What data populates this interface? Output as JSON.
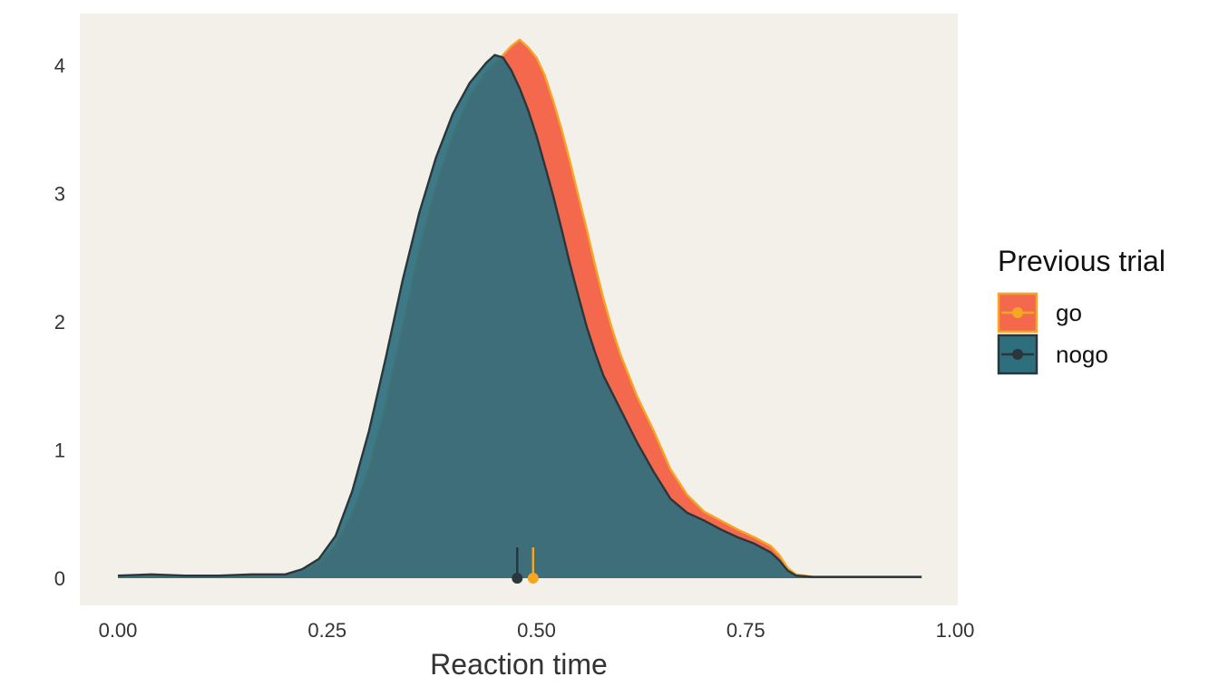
{
  "chart_data": {
    "type": "area",
    "title": "",
    "xlabel": "Reaction time",
    "ylabel": "",
    "xlim": [
      -0.05,
      1.0
    ],
    "ylim": [
      -0.2,
      4.3
    ],
    "x_ticks": [
      "0.00",
      "0.25",
      "0.50",
      "0.75",
      "1.00"
    ],
    "x_tick_values": [
      0,
      0.25,
      0.5,
      0.75,
      1.0
    ],
    "y_ticks": [
      "0",
      "1",
      "2",
      "3",
      "4"
    ],
    "y_tick_values": [
      0,
      1,
      2,
      3,
      4
    ],
    "grid": false,
    "panel_background": "#f3f0e9",
    "legend": {
      "title": "Previous trial",
      "position": "right",
      "entries": [
        {
          "label": "go"
        },
        {
          "label": "nogo"
        }
      ]
    },
    "series": [
      {
        "name": "go",
        "fill": "#f4694e",
        "stroke": "#f5a623",
        "mean_marker": {
          "x": 0.496,
          "y": 0
        },
        "points": [
          [
            0.0,
            0.01
          ],
          [
            0.05,
            0.02
          ],
          [
            0.08,
            0.01
          ],
          [
            0.1,
            0.02
          ],
          [
            0.15,
            0.02
          ],
          [
            0.18,
            0.02
          ],
          [
            0.2,
            0.03
          ],
          [
            0.22,
            0.06
          ],
          [
            0.24,
            0.12
          ],
          [
            0.26,
            0.25
          ],
          [
            0.28,
            0.5
          ],
          [
            0.3,
            0.85
          ],
          [
            0.32,
            1.35
          ],
          [
            0.34,
            1.95
          ],
          [
            0.36,
            2.55
          ],
          [
            0.38,
            3.05
          ],
          [
            0.4,
            3.45
          ],
          [
            0.42,
            3.75
          ],
          [
            0.44,
            3.95
          ],
          [
            0.46,
            4.08
          ],
          [
            0.47,
            4.15
          ],
          [
            0.48,
            4.2
          ],
          [
            0.49,
            4.14
          ],
          [
            0.5,
            4.06
          ],
          [
            0.51,
            3.92
          ],
          [
            0.52,
            3.72
          ],
          [
            0.53,
            3.5
          ],
          [
            0.54,
            3.25
          ],
          [
            0.55,
            2.98
          ],
          [
            0.56,
            2.72
          ],
          [
            0.57,
            2.44
          ],
          [
            0.58,
            2.18
          ],
          [
            0.59,
            1.95
          ],
          [
            0.6,
            1.75
          ],
          [
            0.62,
            1.42
          ],
          [
            0.64,
            1.15
          ],
          [
            0.66,
            0.85
          ],
          [
            0.68,
            0.65
          ],
          [
            0.7,
            0.52
          ],
          [
            0.72,
            0.45
          ],
          [
            0.74,
            0.38
          ],
          [
            0.76,
            0.32
          ],
          [
            0.78,
            0.25
          ],
          [
            0.79,
            0.18
          ],
          [
            0.8,
            0.08
          ],
          [
            0.81,
            0.03
          ],
          [
            0.83,
            0.01
          ],
          [
            0.9,
            0.01
          ],
          [
            0.96,
            0.01
          ]
        ]
      },
      {
        "name": "nogo",
        "fill": "#2e6f7d",
        "stroke": "#2a363b",
        "mean_marker": {
          "x": 0.477,
          "y": 0
        },
        "points": [
          [
            0.0,
            0.02
          ],
          [
            0.04,
            0.03
          ],
          [
            0.08,
            0.02
          ],
          [
            0.12,
            0.02
          ],
          [
            0.16,
            0.03
          ],
          [
            0.2,
            0.03
          ],
          [
            0.22,
            0.07
          ],
          [
            0.24,
            0.15
          ],
          [
            0.26,
            0.33
          ],
          [
            0.28,
            0.68
          ],
          [
            0.3,
            1.15
          ],
          [
            0.32,
            1.72
          ],
          [
            0.34,
            2.32
          ],
          [
            0.36,
            2.85
          ],
          [
            0.38,
            3.28
          ],
          [
            0.4,
            3.62
          ],
          [
            0.42,
            3.86
          ],
          [
            0.44,
            4.02
          ],
          [
            0.45,
            4.08
          ],
          [
            0.46,
            4.06
          ],
          [
            0.47,
            3.96
          ],
          [
            0.48,
            3.82
          ],
          [
            0.49,
            3.65
          ],
          [
            0.5,
            3.45
          ],
          [
            0.51,
            3.22
          ],
          [
            0.52,
            2.98
          ],
          [
            0.53,
            2.72
          ],
          [
            0.54,
            2.45
          ],
          [
            0.55,
            2.2
          ],
          [
            0.56,
            1.96
          ],
          [
            0.57,
            1.76
          ],
          [
            0.58,
            1.58
          ],
          [
            0.6,
            1.32
          ],
          [
            0.62,
            1.06
          ],
          [
            0.64,
            0.83
          ],
          [
            0.66,
            0.62
          ],
          [
            0.68,
            0.51
          ],
          [
            0.7,
            0.45
          ],
          [
            0.72,
            0.38
          ],
          [
            0.74,
            0.32
          ],
          [
            0.76,
            0.27
          ],
          [
            0.78,
            0.2
          ],
          [
            0.79,
            0.14
          ],
          [
            0.8,
            0.06
          ],
          [
            0.81,
            0.02
          ],
          [
            0.83,
            0.01
          ],
          [
            0.9,
            0.01
          ],
          [
            0.96,
            0.01
          ]
        ]
      }
    ]
  }
}
